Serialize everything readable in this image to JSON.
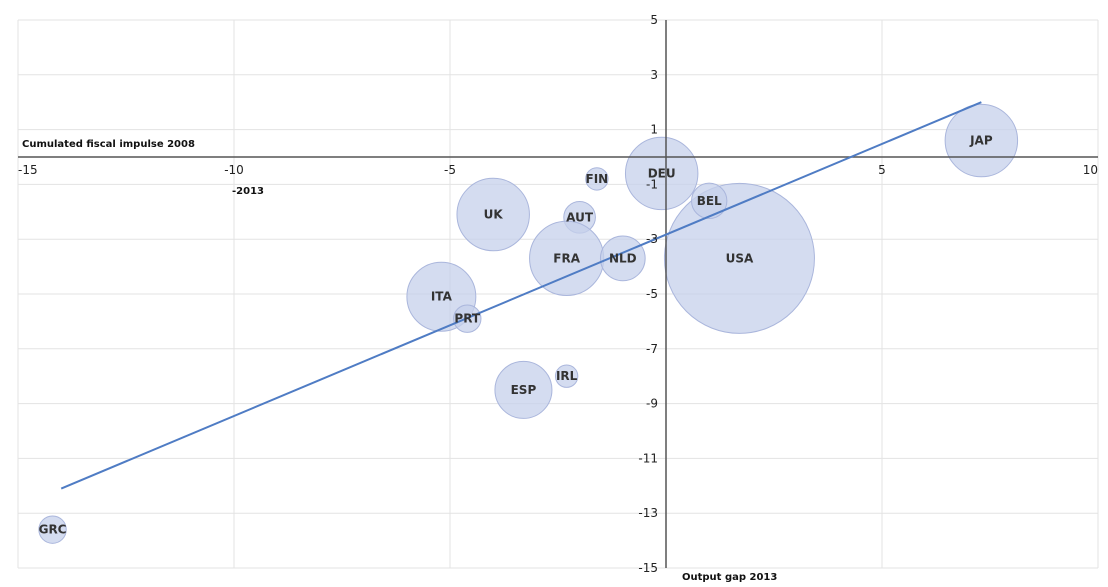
{
  "chart_data": {
    "type": "scatter",
    "variant": "bubble",
    "xlim": [
      -15,
      10
    ],
    "ylim": [
      -15,
      5
    ],
    "x_ticks": [
      -15,
      -10,
      -5,
      0,
      5,
      10
    ],
    "x_tick_labels": [
      "-15",
      "-10",
      "-5",
      "",
      "5",
      "10"
    ],
    "y_ticks": [
      5,
      3,
      1,
      -1,
      -3,
      -5,
      -7,
      -9,
      -11,
      -13,
      -15
    ],
    "y_tick_labels": [
      "5",
      "3",
      "1",
      "-1",
      "-3",
      "-5",
      "-7",
      "-9",
      "-11",
      "-13",
      "-15"
    ],
    "xlabel": "Output gap 2013",
    "ylabel": "Cumulated fiscal impulse 2008",
    "ylabel_cont": "-2013",
    "grid": true,
    "points": [
      {
        "label": "JAP",
        "x": 7.3,
        "y": 0.6,
        "size": 2.1
      },
      {
        "label": "USA",
        "x": 1.7,
        "y": -3.7,
        "size": 9.0
      },
      {
        "label": "DEU",
        "x": -0.1,
        "y": -0.6,
        "size": 2.1
      },
      {
        "label": "BEL",
        "x": 1.0,
        "y": -1.6,
        "size": 0.5
      },
      {
        "label": "FIN",
        "x": -1.6,
        "y": -0.8,
        "size": 0.2
      },
      {
        "label": "UK",
        "x": -4.0,
        "y": -2.1,
        "size": 2.1
      },
      {
        "label": "AUT",
        "x": -2.0,
        "y": -2.2,
        "size": 0.4
      },
      {
        "label": "FRA",
        "x": -2.3,
        "y": -3.7,
        "size": 2.2
      },
      {
        "label": "NLD",
        "x": -1.0,
        "y": -3.7,
        "size": 0.8
      },
      {
        "label": "ITA",
        "x": -5.2,
        "y": -5.1,
        "size": 1.9
      },
      {
        "label": "PRT",
        "x": -4.6,
        "y": -5.9,
        "size": 0.3
      },
      {
        "label": "IRL",
        "x": -2.3,
        "y": -8.0,
        "size": 0.2
      },
      {
        "label": "ESP",
        "x": -3.3,
        "y": -8.5,
        "size": 1.3
      },
      {
        "label": "GRC",
        "x": -14.2,
        "y": -13.6,
        "size": 0.3
      }
    ],
    "trendline": {
      "x": [
        -14.0,
        7.3
      ],
      "y": [
        -12.1,
        2.0
      ]
    },
    "colors": {
      "bubble_fill": "#c6d0eb",
      "bubble_stroke": "#aab6dc",
      "trend": "#4f7cc4",
      "axis": "#555555",
      "grid": "#e3e3e3"
    }
  }
}
